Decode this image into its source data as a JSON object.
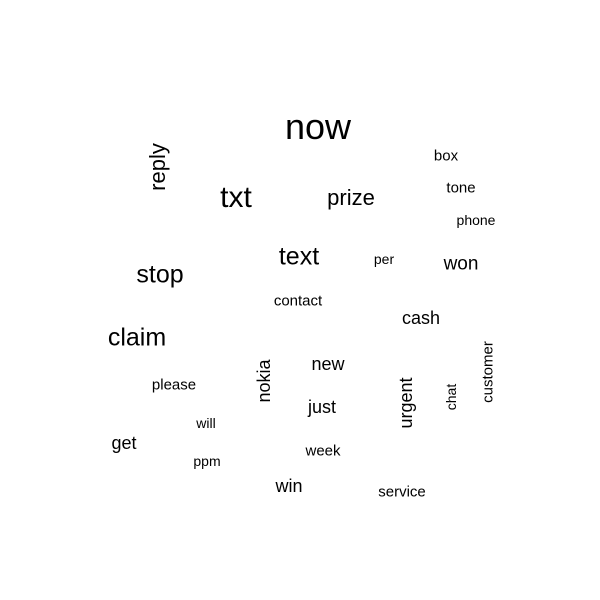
{
  "chart_data": {
    "type": "wordcloud",
    "title": "",
    "words": [
      {
        "text": "now",
        "size": 10,
        "rotated": false
      },
      {
        "text": "txt",
        "size": 7,
        "rotated": false
      },
      {
        "text": "text",
        "size": 6,
        "rotated": false
      },
      {
        "text": "stop",
        "size": 6,
        "rotated": false
      },
      {
        "text": "claim",
        "size": 6,
        "rotated": false
      },
      {
        "text": "reply",
        "size": 5,
        "rotated": true
      },
      {
        "text": "prize",
        "size": 5,
        "rotated": false
      },
      {
        "text": "won",
        "size": 4,
        "rotated": false
      },
      {
        "text": "cash",
        "size": 3,
        "rotated": false
      },
      {
        "text": "new",
        "size": 3,
        "rotated": false
      },
      {
        "text": "just",
        "size": 3,
        "rotated": false
      },
      {
        "text": "get",
        "size": 3,
        "rotated": false
      },
      {
        "text": "nokia",
        "size": 3,
        "rotated": true
      },
      {
        "text": "urgent",
        "size": 3,
        "rotated": true
      },
      {
        "text": "win",
        "size": 3,
        "rotated": false
      },
      {
        "text": "contact",
        "size": 2,
        "rotated": false
      },
      {
        "text": "please",
        "size": 2,
        "rotated": false
      },
      {
        "text": "week",
        "size": 2,
        "rotated": false
      },
      {
        "text": "service",
        "size": 2,
        "rotated": false
      },
      {
        "text": "box",
        "size": 2,
        "rotated": false
      },
      {
        "text": "tone",
        "size": 2,
        "rotated": false
      },
      {
        "text": "customer",
        "size": 2,
        "rotated": true
      },
      {
        "text": "phone",
        "size": 1,
        "rotated": false
      },
      {
        "text": "per",
        "size": 1,
        "rotated": false
      },
      {
        "text": "chat",
        "size": 1,
        "rotated": true
      },
      {
        "text": "will",
        "size": 1,
        "rotated": false
      },
      {
        "text": "ppm",
        "size": 1,
        "rotated": false
      }
    ]
  }
}
